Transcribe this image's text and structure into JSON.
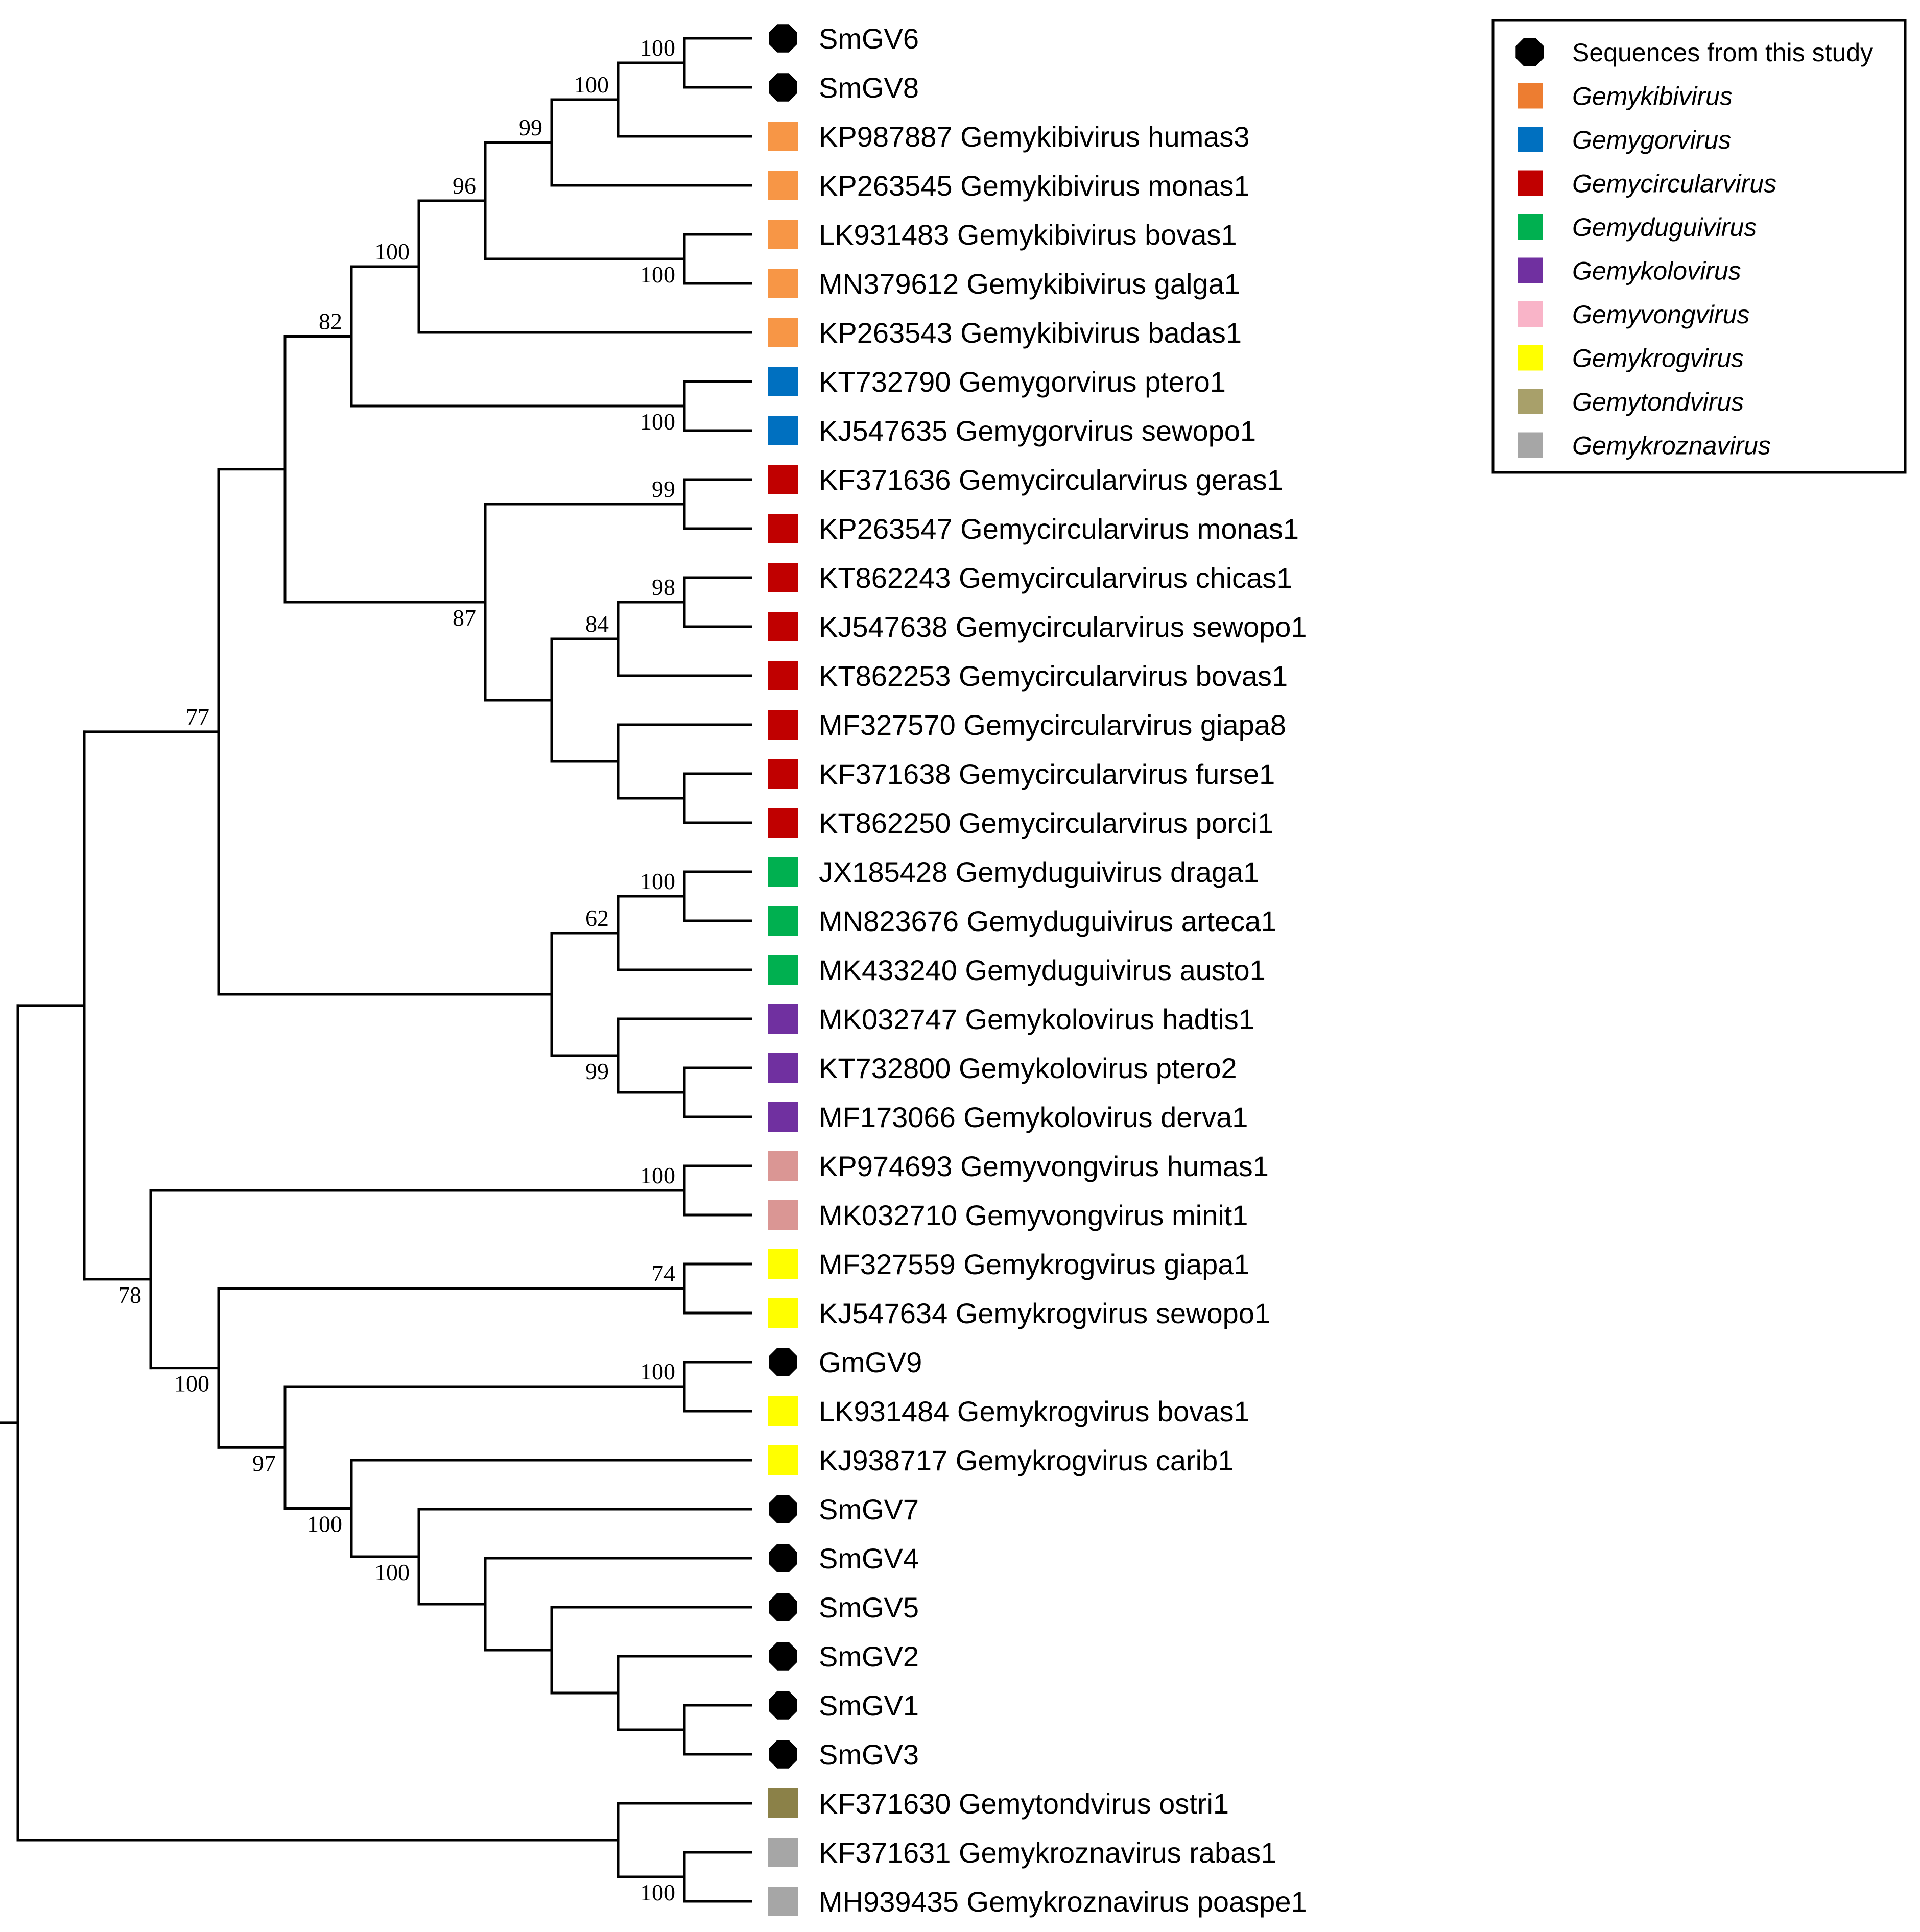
{
  "legend": {
    "entries": [
      {
        "label": "Sequences from this study",
        "marker": "octagon",
        "color": "#000000",
        "italic": false
      },
      {
        "label": "Gemykibivirus",
        "marker": "square",
        "color": "#ED7D31",
        "italic": true
      },
      {
        "label": "Gemygorvirus",
        "marker": "square",
        "color": "#0070C0",
        "italic": true
      },
      {
        "label": "Gemycircularvirus",
        "marker": "square",
        "color": "#C00000",
        "italic": true
      },
      {
        "label": "Gemyduguivirus",
        "marker": "square",
        "color": "#00B050",
        "italic": true
      },
      {
        "label": "Gemykolovirus",
        "marker": "square",
        "color": "#7030A0",
        "italic": true
      },
      {
        "label": "Gemyvongvirus",
        "marker": "square",
        "color": "#F9B4C8",
        "italic": true
      },
      {
        "label": "Gemykrogvirus",
        "marker": "square",
        "color": "#FFFF00",
        "italic": true
      },
      {
        "label": "Gemytondvirus",
        "marker": "square",
        "color": "#A8A06A",
        "italic": true
      },
      {
        "label": "Gemykroznavirus",
        "marker": "square",
        "color": "#A6A6A6",
        "italic": true
      }
    ]
  },
  "tree": {
    "leaves": [
      {
        "label": "SmGV6",
        "marker": "octagon",
        "color": "#000000"
      },
      {
        "label": "SmGV8",
        "marker": "octagon",
        "color": "#000000"
      },
      {
        "label": "KP987887 Gemykibivirus humas3",
        "marker": "square",
        "color": "#F79646"
      },
      {
        "label": "KP263545 Gemykibivirus monas1",
        "marker": "square",
        "color": "#F79646"
      },
      {
        "label": "LK931483 Gemykibivirus bovas1",
        "marker": "square",
        "color": "#F79646"
      },
      {
        "label": "MN379612 Gemykibivirus galga1",
        "marker": "square",
        "color": "#F79646"
      },
      {
        "label": "KP263543 Gemykibivirus badas1",
        "marker": "square",
        "color": "#F79646"
      },
      {
        "label": "KT732790 Gemygorvirus ptero1",
        "marker": "square",
        "color": "#0070C0"
      },
      {
        "label": "KJ547635 Gemygorvirus sewopo1",
        "marker": "square",
        "color": "#0070C0"
      },
      {
        "label": "KF371636 Gemycircularvirus geras1",
        "marker": "square",
        "color": "#C00000"
      },
      {
        "label": "KP263547 Gemycircularvirus monas1",
        "marker": "square",
        "color": "#C00000"
      },
      {
        "label": "KT862243 Gemycircularvirus chicas1",
        "marker": "square",
        "color": "#C00000"
      },
      {
        "label": "KJ547638 Gemycircularvirus sewopo1",
        "marker": "square",
        "color": "#C00000"
      },
      {
        "label": "KT862253 Gemycircularvirus bovas1",
        "marker": "square",
        "color": "#C00000"
      },
      {
        "label": "MF327570 Gemycircularvirus giapa8",
        "marker": "square",
        "color": "#C00000"
      },
      {
        "label": "KF371638 Gemycircularvirus furse1",
        "marker": "square",
        "color": "#C00000"
      },
      {
        "label": "KT862250 Gemycircularvirus porci1",
        "marker": "square",
        "color": "#C00000"
      },
      {
        "label": "JX185428 Gemyduguivirus draga1",
        "marker": "square",
        "color": "#00B050"
      },
      {
        "label": "MN823676 Gemyduguivirus arteca1",
        "marker": "square",
        "color": "#00B050"
      },
      {
        "label": "MK433240 Gemyduguivirus austo1",
        "marker": "square",
        "color": "#00B050"
      },
      {
        "label": "MK032747 Gemykolovirus hadtis1",
        "marker": "square",
        "color": "#7030A0"
      },
      {
        "label": "KT732800 Gemykolovirus ptero2",
        "marker": "square",
        "color": "#7030A0"
      },
      {
        "label": "MF173066 Gemykolovirus derva1",
        "marker": "square",
        "color": "#7030A0"
      },
      {
        "label": "KP974693 Gemyvongvirus humas1",
        "marker": "square",
        "color": "#DA9694"
      },
      {
        "label": "MK032710 Gemyvongvirus minit1",
        "marker": "square",
        "color": "#DA9694"
      },
      {
        "label": "MF327559 Gemykrogvirus giapa1",
        "marker": "square",
        "color": "#FFFF00"
      },
      {
        "label": "KJ547634 Gemykrogvirus sewopo1",
        "marker": "square",
        "color": "#FFFF00"
      },
      {
        "label": "GmGV9",
        "marker": "octagon",
        "color": "#000000"
      },
      {
        "label": "LK931484 Gemykrogvirus bovas1",
        "marker": "square",
        "color": "#FFFF00"
      },
      {
        "label": "KJ938717 Gemykrogvirus carib1",
        "marker": "square",
        "color": "#FFFF00"
      },
      {
        "label": "SmGV7",
        "marker": "octagon",
        "color": "#000000"
      },
      {
        "label": "SmGV4",
        "marker": "octagon",
        "color": "#000000"
      },
      {
        "label": "SmGV5",
        "marker": "octagon",
        "color": "#000000"
      },
      {
        "label": "SmGV2",
        "marker": "octagon",
        "color": "#000000"
      },
      {
        "label": "SmGV1",
        "marker": "octagon",
        "color": "#000000"
      },
      {
        "label": "SmGV3",
        "marker": "octagon",
        "color": "#000000"
      },
      {
        "label": "KF371630 Gemytondvirus ostri1",
        "marker": "square",
        "color": "#8B8148"
      },
      {
        "label": "KF371631 Gemykroznavirus rabas1",
        "marker": "square",
        "color": "#A6A6A6"
      },
      {
        "label": "MH939435 Gemykroznavirus poaspe1",
        "marker": "square",
        "color": "#A6A6A6"
      }
    ],
    "bootstrap_labels": [
      "100",
      "100",
      "99",
      "96",
      "100",
      "100",
      "82",
      "100",
      "77",
      "99",
      "87",
      "98",
      "84",
      "100",
      "62",
      "99",
      "100",
      "74",
      "78",
      "100",
      "100",
      "97",
      "100",
      "100",
      "100"
    ]
  }
}
